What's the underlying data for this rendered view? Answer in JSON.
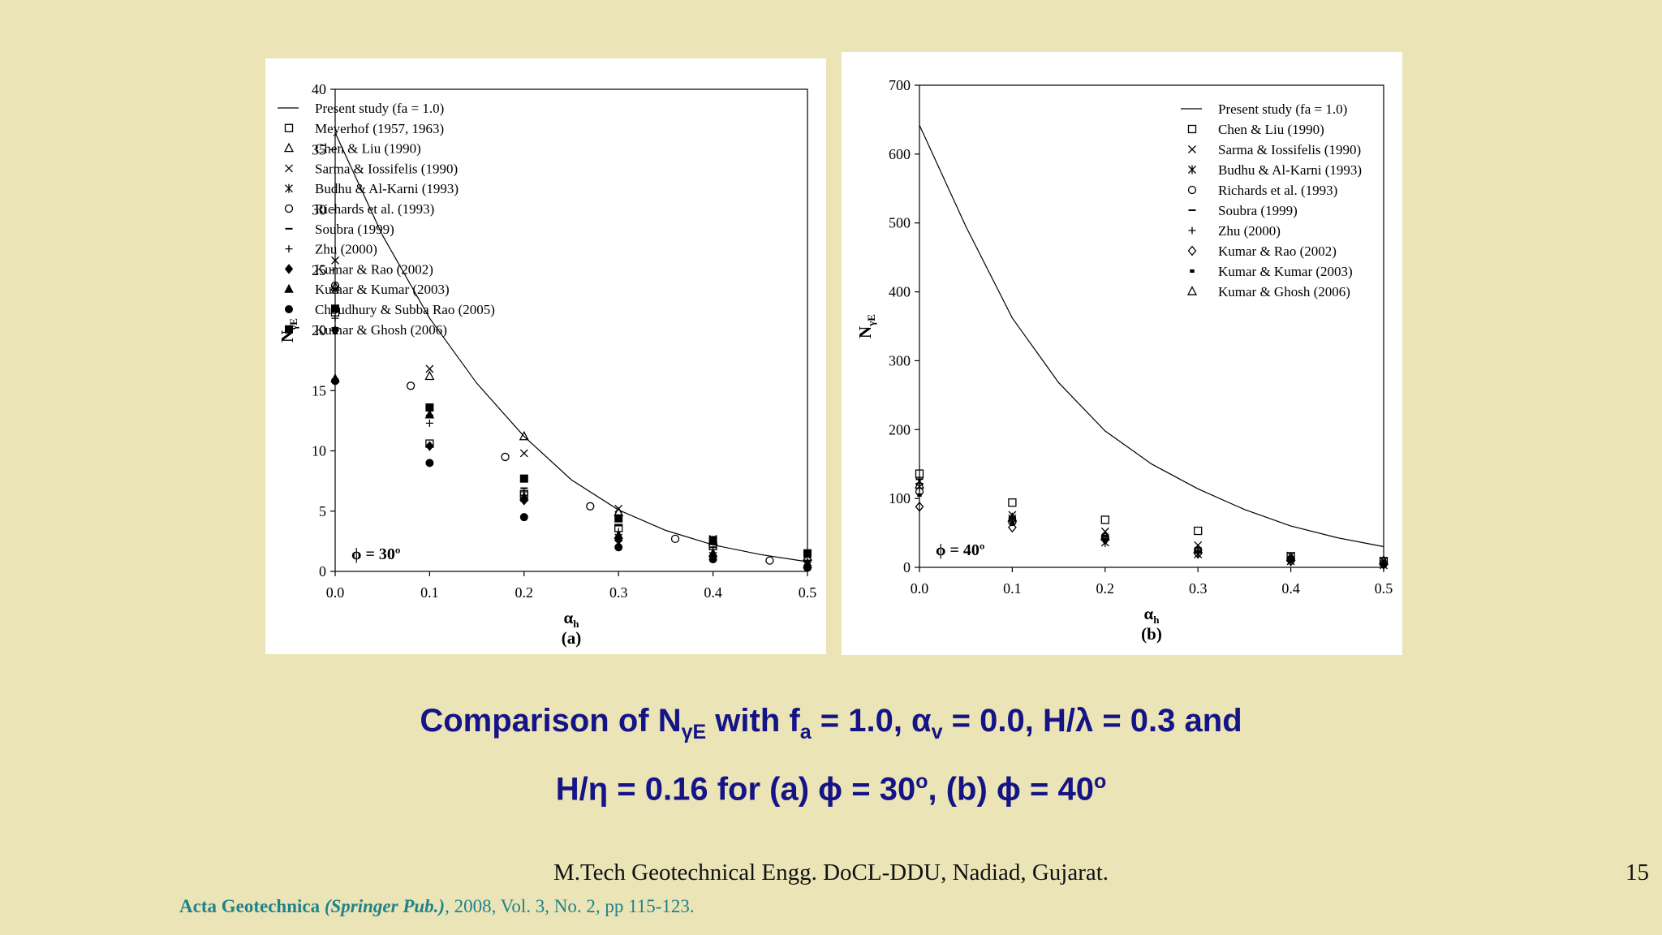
{
  "caption": {
    "line1_a": "Comparison of N",
    "line1_sub": "γE",
    "line1_b": " with f",
    "line1_sub2": "a",
    "line1_c": " = 1.0, α",
    "line1_sub3": "v",
    "line1_d": " = 0.0, H/λ = 0.3 and",
    "line2_a": "H/η = 0.16 for (a) ϕ = 30",
    "line2_sup": "o",
    "line2_b": ", (b) ϕ = 40",
    "line2_sup2": "o"
  },
  "footer": {
    "institution": "M.Tech Geotechnical Engg. DoCL-DDU, Nadiad, Gujarat.",
    "page_number": "15",
    "reference_journal": "Acta Geotechnica",
    "reference_publisher": " (Springer Pub.)",
    "reference_rest": ", 2008, Vol. 3, No. 2, pp 115-123."
  },
  "chart_data": [
    {
      "type": "scatter",
      "panel_label": "(a)",
      "annotation": "ϕ = 30º",
      "xlabel": "α",
      "xlabel_sub": "h",
      "ylabel": "N",
      "ylabel_sub": "γE",
      "xlim": [
        0,
        0.5
      ],
      "ylim": [
        0,
        40
      ],
      "xticks": [
        "0.0",
        "0.1",
        "0.2",
        "0.3",
        "0.4",
        "0.5"
      ],
      "yticks": [
        "0",
        "5",
        "10",
        "15",
        "20",
        "25",
        "30",
        "35",
        "40"
      ],
      "grid": false,
      "legend_position": "top-right",
      "curve": {
        "name": "Present study (fa = 1.0)",
        "x": [
          0,
          0.05,
          0.1,
          0.15,
          0.2,
          0.25,
          0.3,
          0.35,
          0.4,
          0.45,
          0.5
        ],
        "y": [
          36.4,
          27.9,
          21.0,
          15.6,
          11.2,
          7.6,
          5.1,
          3.4,
          2.2,
          1.4,
          0.8
        ]
      },
      "series": [
        {
          "name": "Meyerhof (1957, 1963)",
          "marker": "square-open",
          "x": [
            0,
            0.1,
            0.2,
            0.3,
            0.4
          ],
          "y": [
            21.5,
            10.6,
            6.4,
            3.6,
            2.1
          ]
        },
        {
          "name": "Chen & Liu (1990)",
          "marker": "triangle-open",
          "x": [
            0,
            0.1,
            0.2,
            0.3,
            0.4,
            0.5
          ],
          "y": [
            23.6,
            16.2,
            11.2,
            4.9,
            2.5,
            1.2
          ]
        },
        {
          "name": "Sarma & Iossifelis (1990)",
          "marker": "x",
          "x": [
            0,
            0.1,
            0.2,
            0.3,
            0.4,
            0.5
          ],
          "y": [
            25.8,
            16.8,
            9.8,
            5.2,
            2.7,
            1.3
          ]
        },
        {
          "name": "Budhu & Al-Karni (1993)",
          "marker": "star",
          "x": [
            0,
            0.1,
            0.2,
            0.3,
            0.4,
            0.5
          ],
          "y": [
            23.4,
            13.2,
            6.1,
            2.8,
            1.3,
            0.5
          ]
        },
        {
          "name": "Richards et al. (1993)",
          "marker": "circle-open",
          "x": [
            0,
            0.08,
            0.18,
            0.27,
            0.36,
            0.46
          ],
          "y": [
            23.7,
            15.4,
            9.5,
            5.4,
            2.7,
            0.9
          ]
        },
        {
          "name": "Soubra (1999)",
          "marker": "dash",
          "x": [
            0,
            0.1,
            0.2,
            0.3,
            0.4,
            0.5
          ],
          "y": [
            20.2,
            13.8,
            6.9,
            3.8,
            2.0,
            0.9
          ]
        },
        {
          "name": "Zhu (2000)",
          "marker": "plus",
          "x": [
            0,
            0.1,
            0.2,
            0.3,
            0.4,
            0.5
          ],
          "y": [
            21.0,
            12.3,
            6.6,
            3.3,
            1.8,
            0.8
          ]
        },
        {
          "name": "Kumar & Rao (2002)",
          "marker": "diamond-filled",
          "x": [
            0,
            0.1,
            0.2,
            0.3,
            0.4,
            0.5
          ],
          "y": [
            20.0,
            10.4,
            5.9,
            2.6,
            1.3,
            0.5
          ]
        },
        {
          "name": "Kumar & Kumar (2003)",
          "marker": "triangle-filled",
          "x": [
            0,
            0.1,
            0.2,
            0.3,
            0.4,
            0.5
          ],
          "y": [
            16.0,
            13.0,
            6.2,
            3.0,
            1.5,
            0.6
          ]
        },
        {
          "name": "Choudhury & Subba Rao (2005)",
          "marker": "circle-filled",
          "x": [
            0,
            0.1,
            0.2,
            0.3,
            0.4,
            0.5
          ],
          "y": [
            15.8,
            9.0,
            4.5,
            2.0,
            1.0,
            0.3
          ]
        },
        {
          "name": "Kumar & Ghosh (2006)",
          "marker": "square-filled",
          "x": [
            0,
            0.1,
            0.2,
            0.3,
            0.4,
            0.5
          ],
          "y": [
            21.8,
            13.6,
            7.7,
            4.4,
            2.6,
            1.5
          ]
        }
      ]
    },
    {
      "type": "scatter",
      "panel_label": "(b)",
      "annotation": "ϕ = 40º",
      "xlabel": "α",
      "xlabel_sub": "h",
      "ylabel": "N",
      "ylabel_sub": "γE",
      "xlim": [
        0,
        0.5
      ],
      "ylim": [
        0,
        700
      ],
      "xticks": [
        "0.0",
        "0.1",
        "0.2",
        "0.3",
        "0.4",
        "0.5"
      ],
      "yticks": [
        "0",
        "100",
        "200",
        "300",
        "400",
        "500",
        "600",
        "700"
      ],
      "grid": false,
      "legend_position": "top-right",
      "curve": {
        "name": "Present study (fa = 1.0)",
        "x": [
          0,
          0.05,
          0.1,
          0.15,
          0.2,
          0.25,
          0.3,
          0.35,
          0.4,
          0.45,
          0.5
        ],
        "y": [
          642,
          495,
          362,
          268,
          198,
          150,
          114,
          84,
          60,
          43,
          30
        ]
      },
      "series": [
        {
          "name": "Chen & Liu (1990)",
          "marker": "square-open",
          "x": [
            0,
            0.1,
            0.2,
            0.3,
            0.4,
            0.5
          ],
          "y": [
            136,
            94,
            69,
            53,
            16,
            9
          ]
        },
        {
          "name": "Sarma & Iossifelis (1990)",
          "marker": "x",
          "x": [
            0,
            0.1,
            0.2,
            0.3,
            0.4,
            0.5
          ],
          "y": [
            125,
            76,
            52,
            32,
            17,
            9
          ]
        },
        {
          "name": "Budhu & Al-Karni (1993)",
          "marker": "star",
          "x": [
            0,
            0.1,
            0.2,
            0.3,
            0.4,
            0.5
          ],
          "y": [
            117,
            71,
            36,
            19,
            9,
            3
          ]
        },
        {
          "name": "Richards et al. (1993)",
          "marker": "circle-open",
          "x": [
            0,
            0.1,
            0.2,
            0.3,
            0.4,
            0.5
          ],
          "y": [
            110,
            66,
            44,
            25,
            12,
            5
          ]
        },
        {
          "name": "Soubra (1999)",
          "marker": "dash",
          "x": [
            0,
            0.1,
            0.2,
            0.3,
            0.4,
            0.5
          ],
          "y": [
            128,
            73,
            46,
            28,
            14,
            6
          ]
        },
        {
          "name": "Zhu (2000)",
          "marker": "plus",
          "x": [
            0,
            0.1,
            0.2,
            0.3,
            0.4,
            0.5
          ],
          "y": [
            122,
            70,
            42,
            24,
            11,
            5
          ]
        },
        {
          "name": "Kumar & Rao (2002)",
          "marker": "diamond-open",
          "x": [
            0,
            0.1,
            0.2,
            0.3,
            0.4,
            0.5
          ],
          "y": [
            88,
            58,
            40,
            20,
            9,
            4
          ]
        },
        {
          "name": "Kumar & Kumar (2003)",
          "marker": "dot",
          "x": [
            0,
            0.1,
            0.2,
            0.3,
            0.4,
            0.5
          ],
          "y": [
            105,
            64,
            39,
            22,
            10,
            4
          ]
        },
        {
          "name": "Kumar & Ghosh (2006)",
          "marker": "triangle-open",
          "x": [
            0,
            0.1,
            0.2,
            0.3,
            0.4,
            0.5
          ],
          "y": [
            120,
            72,
            45,
            26,
            15,
            10
          ]
        }
      ]
    }
  ]
}
